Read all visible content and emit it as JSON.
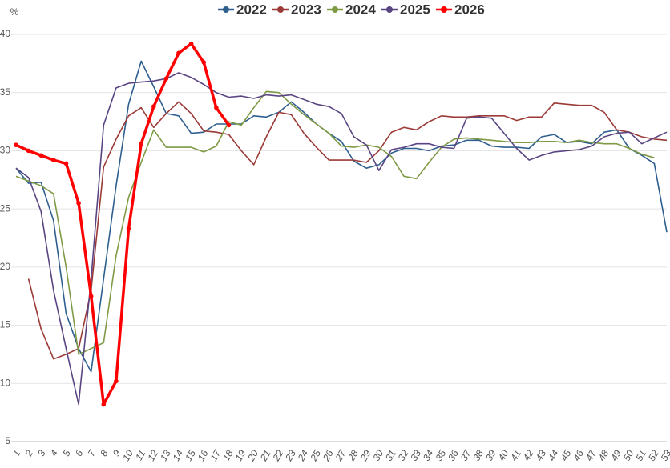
{
  "chart_data": {
    "type": "line",
    "y_label": "%",
    "categories": [
      "1",
      "2",
      "3",
      "4",
      "5",
      "6",
      "7",
      "8",
      "9",
      "10",
      "11",
      "12",
      "13",
      "14",
      "15",
      "16",
      "17",
      "18",
      "19",
      "20",
      "21",
      "22",
      "23",
      "24",
      "25",
      "26",
      "27",
      "28",
      "29",
      "30",
      "31",
      "32",
      "33",
      "34",
      "35",
      "36",
      "37",
      "38",
      "39",
      "40",
      "41",
      "42",
      "43",
      "44",
      "45",
      "46",
      "47",
      "48",
      "49",
      "50",
      "51",
      "52",
      "53"
    ],
    "ylim": [
      5,
      40
    ],
    "yticks": [
      5,
      10,
      15,
      20,
      25,
      30,
      35,
      40
    ],
    "grid": true,
    "legend": "top",
    "series": [
      {
        "name": "2022",
        "color": "#2e5f8f",
        "values": [
          28.5,
          27.2,
          27.3,
          24,
          16,
          13,
          11,
          19,
          27,
          34,
          37.7,
          35.5,
          33.2,
          33,
          31.5,
          31.6,
          32.3,
          32.3,
          32.3,
          33,
          32.9,
          33.3,
          34.2,
          33.3,
          32.3,
          31.5,
          30.8,
          29.1,
          28.5,
          28.8,
          29.8,
          30.2,
          30.2,
          30,
          30.4,
          30.5,
          30.9,
          30.9,
          30.4,
          30.3,
          30.3,
          30.2,
          31.2,
          31.4,
          30.7,
          30.8,
          30.6,
          31.6,
          31.8,
          30.2,
          29.6,
          28.9,
          23
        ]
      },
      {
        "name": "2023",
        "color": "#9b3a36",
        "values": [
          null,
          19,
          14.7,
          12.1,
          12.5,
          13,
          18,
          28.6,
          31,
          33,
          33.7,
          32,
          33.2,
          34.2,
          33.2,
          31.7,
          31.6,
          31.4,
          30,
          28.8,
          31.2,
          33.3,
          33.1,
          31.5,
          30.3,
          29.2,
          29.2,
          29.2,
          29,
          30,
          31.6,
          32,
          31.8,
          32.5,
          33,
          32.9,
          32.9,
          33,
          33,
          33,
          32.6,
          32.9,
          32.9,
          34.1,
          34,
          33.9,
          33.9,
          33.3,
          31.8,
          31.6,
          31.2,
          31,
          30.9
        ]
      },
      {
        "name": "2024",
        "color": "#7f9a45",
        "values": [
          27.8,
          27.4,
          27,
          26.3,
          20,
          12.5,
          13,
          13.5,
          21,
          26,
          29,
          31.8,
          30.3,
          30.3,
          30.3,
          29.9,
          30.4,
          32.5,
          32.2,
          33.7,
          35.1,
          35,
          34,
          33.1,
          32.3,
          31.5,
          30.4,
          30.3,
          30.5,
          30.3,
          29.5,
          27.8,
          27.6,
          29,
          30.3,
          31,
          31.1,
          31,
          30.9,
          30.8,
          30.7,
          30.7,
          30.8,
          30.8,
          30.7,
          30.9,
          30.7,
          30.6,
          30.6,
          30.2,
          29.7,
          29.4,
          null
        ]
      },
      {
        "name": "2025",
        "color": "#5a4583",
        "values": [
          28.5,
          27.7,
          24.8,
          18,
          13,
          8.2,
          19,
          32.2,
          35.4,
          35.8,
          35.9,
          36,
          36.2,
          36.7,
          36.3,
          35.7,
          35,
          34.6,
          34.7,
          34.5,
          34.8,
          34.7,
          34.8,
          34.4,
          34,
          33.8,
          33.2,
          31.2,
          30.5,
          28.3,
          30.1,
          30.3,
          30.6,
          30.6,
          30.3,
          30.2,
          32.8,
          32.9,
          32.8,
          31.5,
          30.2,
          29.2,
          29.6,
          29.9,
          30,
          30.1,
          30.4,
          31.2,
          31.5,
          31.6,
          30.6,
          31.1,
          31.6
        ]
      },
      {
        "name": "2026",
        "color": "#ff0000",
        "values": [
          30.5,
          30,
          29.6,
          29.2,
          28.9,
          25.5,
          17.5,
          8.2,
          10.2,
          23.3,
          30.6,
          33.8,
          36.2,
          38.4,
          39.2,
          37.6,
          33.7,
          32.2,
          null,
          null,
          null,
          null,
          null,
          null,
          null,
          null,
          null,
          null,
          null,
          null,
          null,
          null,
          null,
          null,
          null,
          null,
          null,
          null,
          null,
          null,
          null,
          null,
          null,
          null,
          null,
          null,
          null,
          null,
          null,
          null,
          null,
          null,
          null
        ]
      }
    ]
  }
}
